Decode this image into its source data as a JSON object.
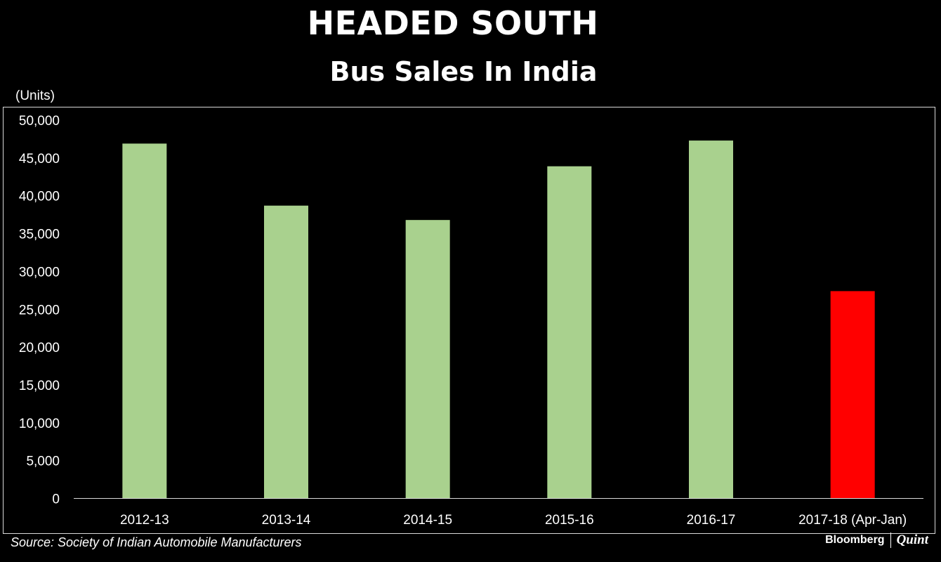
{
  "title": "HEADED SOUTH",
  "subtitle": "Bus Sales In India",
  "unit_label": "(Units)",
  "source": "Source: Society of Indian Automobile Manufacturers",
  "logo": {
    "brand": "Bloomberg",
    "partner": "Quint"
  },
  "colors": {
    "background": "#000000",
    "bar_default": "#a9d18e",
    "bar_highlight": "#ff0000",
    "text": "#ffffff",
    "axis": "#d9d9d9"
  },
  "chart_data": {
    "type": "bar",
    "categories": [
      "2012-13",
      "2013-14",
      "2014-15",
      "2015-16",
      "2016-17",
      "2017-18 (Apr-Jan)"
    ],
    "values": [
      46900,
      38700,
      36800,
      43900,
      47300,
      27400
    ],
    "highlight": [
      false,
      false,
      false,
      false,
      false,
      true
    ],
    "ylim": [
      0,
      50000
    ],
    "yticks": [
      0,
      5000,
      10000,
      15000,
      20000,
      25000,
      30000,
      35000,
      40000,
      45000,
      50000
    ],
    "ytick_labels": [
      "0",
      "5,000",
      "10,000",
      "15,000",
      "20,000",
      "25,000",
      "30,000",
      "35,000",
      "40,000",
      "45,000",
      "50,000"
    ],
    "grid": false,
    "legend": "none"
  }
}
